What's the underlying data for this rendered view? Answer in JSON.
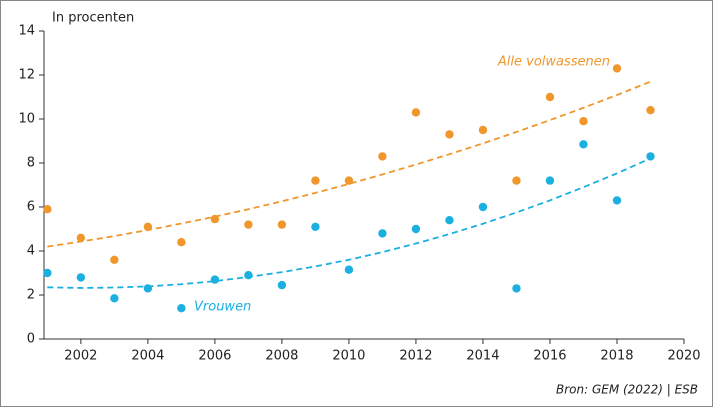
{
  "chart_data": {
    "type": "scatter",
    "y_label": "In procenten",
    "source": "Bron: GEM (2022) | ESB",
    "x": [
      2001,
      2002,
      2003,
      2004,
      2005,
      2006,
      2007,
      2008,
      2009,
      2010,
      2011,
      2012,
      2013,
      2014,
      2015,
      2016,
      2017,
      2018,
      2019
    ],
    "series": [
      {
        "name": "Alle volwassenen",
        "color": "#f0962a",
        "values": [
          5.9,
          4.6,
          3.6,
          5.1,
          4.4,
          5.45,
          5.2,
          5.2,
          7.2,
          7.2,
          8.3,
          10.3,
          9.3,
          9.5,
          7.2,
          11,
          9.9,
          12.3,
          10.4
        ],
        "trend": [
          4.2,
          4.43,
          4.68,
          4.95,
          5.25,
          5.56,
          5.9,
          6.26,
          6.64,
          7.05,
          7.48,
          7.93,
          8.4,
          8.89,
          9.41,
          9.95,
          10.51,
          11.09,
          11.7
        ]
      },
      {
        "name": "Vrouwen",
        "color": "#1ab0e0",
        "values": [
          3.0,
          2.8,
          1.85,
          2.3,
          1.4,
          2.7,
          2.9,
          2.45,
          5.1,
          3.15,
          4.8,
          5.0,
          5.4,
          6.0,
          2.3,
          7.2,
          8.85,
          6.3,
          8.3
        ],
        "trend": [
          2.35,
          2.32,
          2.34,
          2.39,
          2.49,
          2.63,
          2.82,
          3.04,
          3.3,
          3.6,
          3.95,
          4.34,
          4.77,
          5.24,
          5.75,
          6.3,
          6.9,
          7.53,
          8.21
        ]
      }
    ],
    "xlim": [
      2000.9,
      2020
    ],
    "xticks": [
      2002,
      2004,
      2006,
      2008,
      2010,
      2012,
      2014,
      2016,
      2018,
      2020
    ],
    "ylim": [
      0,
      14
    ],
    "yticks": [
      0,
      2,
      4,
      6,
      8,
      10,
      12,
      14
    ],
    "grid": false
  }
}
